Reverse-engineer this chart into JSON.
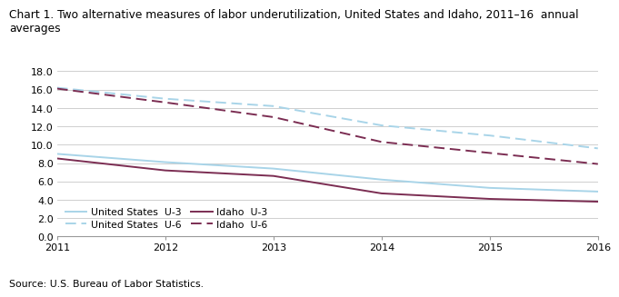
{
  "title_line1": "Chart 1. Two alternative measures of labor underutilization, United States and Idaho, 2011–16  annual",
  "title_line2": "averages",
  "years": [
    2011,
    2012,
    2013,
    2014,
    2015,
    2016
  ],
  "us_u3": [
    9.0,
    8.1,
    7.4,
    6.2,
    5.3,
    4.9
  ],
  "us_u6": [
    16.2,
    15.0,
    14.2,
    12.1,
    11.0,
    9.6
  ],
  "idaho_u3": [
    8.5,
    7.2,
    6.6,
    4.7,
    4.1,
    3.8
  ],
  "idaho_u6": [
    16.1,
    14.6,
    13.0,
    10.3,
    9.1,
    7.9
  ],
  "us_color": "#A8D4E8",
  "idaho_color": "#7B2D52",
  "ylim": [
    0.0,
    18.0
  ],
  "yticks": [
    0.0,
    2.0,
    4.0,
    6.0,
    8.0,
    10.0,
    12.0,
    14.0,
    16.0,
    18.0
  ],
  "source": "Source: U.S. Bureau of Labor Statistics.",
  "legend": {
    "us_u3_label": "United States  U-3",
    "us_u6_label": "United States  U-6",
    "idaho_u3_label": "Idaho  U-3",
    "idaho_u6_label": "Idaho  U-6"
  },
  "grid_color": "#C8C8C8",
  "spine_color": "#999999",
  "background_color": "#FFFFFF",
  "title_fontsize": 8.8,
  "tick_fontsize": 8.0,
  "source_fontsize": 7.8,
  "legend_fontsize": 7.8,
  "linewidth_solid": 1.4,
  "linewidth_dashed": 1.4
}
